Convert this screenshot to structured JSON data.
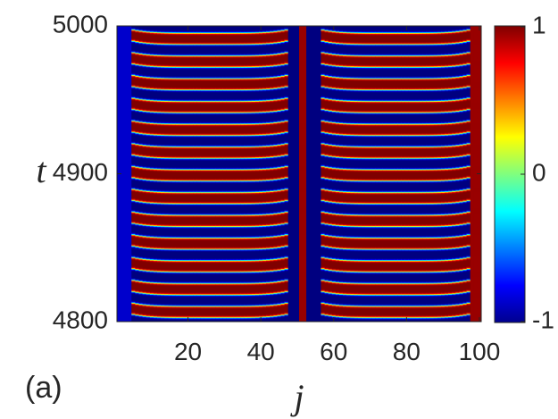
{
  "chart_data": {
    "type": "heatmap",
    "panel_label": "(a)",
    "xlabel": "j",
    "ylabel": "t",
    "xlim": [
      1,
      100
    ],
    "ylim": [
      4800,
      5000
    ],
    "x_ticks": [
      20,
      40,
      60,
      80,
      100
    ],
    "y_ticks": [
      4800,
      4900,
      5000
    ],
    "color_range": [
      -1,
      1
    ],
    "colorbar_ticks": [
      -1,
      0,
      1
    ],
    "colorbar_tick_labels": [
      "-1",
      "0",
      "1"
    ],
    "colormap": "jet",
    "pattern": {
      "oscillating_bands_j": [
        [
          5,
          47
        ],
        [
          57,
          97
        ]
      ],
      "stripe_period_t": 15.4,
      "stripe_phase_t": 4803,
      "stripe_bow_upward": true,
      "static_columns": [
        {
          "j_range": [
            1,
            4
          ],
          "value": -0.85
        },
        {
          "j_range": [
            48,
            50
          ],
          "value": -1.0
        },
        {
          "j_range": [
            51,
            52
          ],
          "value": 0.95
        },
        {
          "j_range": [
            53,
            56
          ],
          "value": -1.0
        },
        {
          "j_range": [
            98,
            100
          ],
          "value": 0.95
        }
      ]
    }
  }
}
